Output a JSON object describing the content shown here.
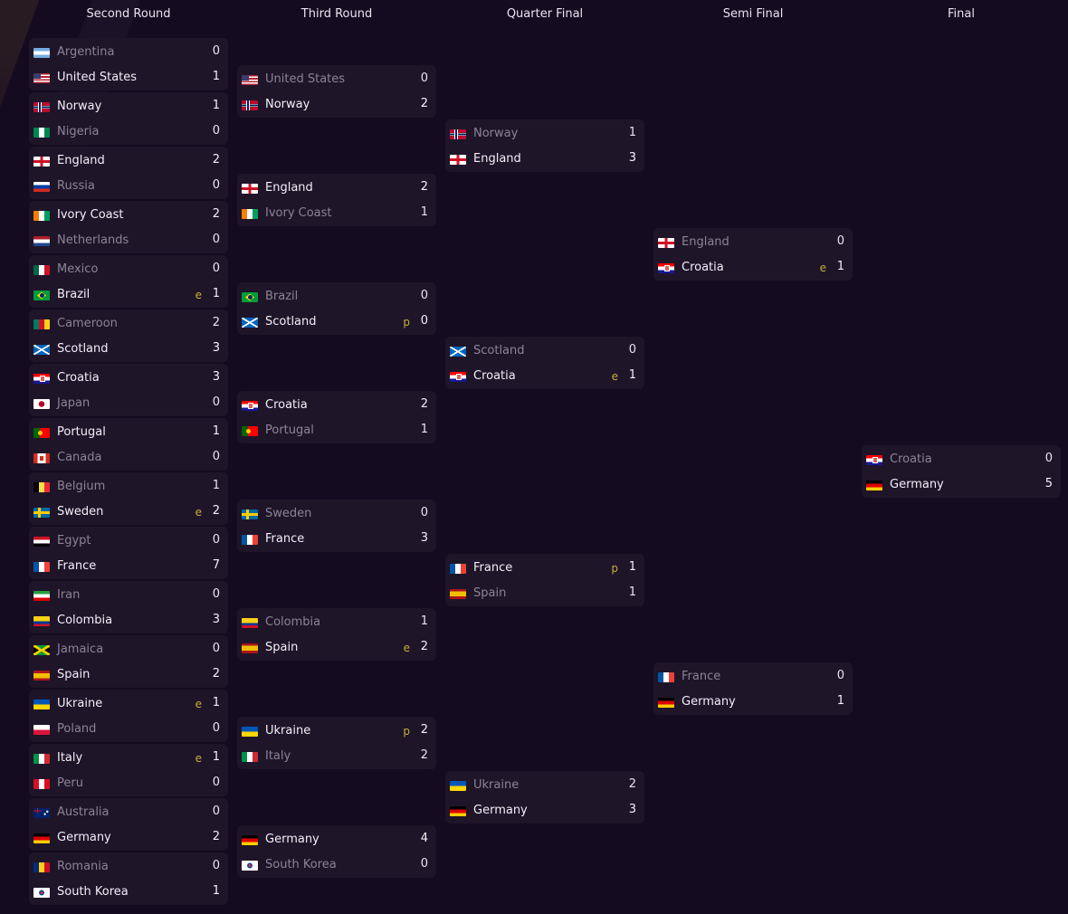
{
  "rounds": [
    {
      "title": "Second Round",
      "matches": [
        [
          {
            "name": "Argentina",
            "flag": "ar",
            "score": "0"
          },
          {
            "name": "United States",
            "flag": "us",
            "score": "1",
            "winner": true
          }
        ],
        [
          {
            "name": "Norway",
            "flag": "no",
            "score": "1",
            "winner": true
          },
          {
            "name": "Nigeria",
            "flag": "ng",
            "score": "0"
          }
        ],
        [
          {
            "name": "England",
            "flag": "en",
            "score": "2",
            "winner": true
          },
          {
            "name": "Russia",
            "flag": "ru",
            "score": "0"
          }
        ],
        [
          {
            "name": "Ivory Coast",
            "flag": "ci",
            "score": "2",
            "winner": true
          },
          {
            "name": "Netherlands",
            "flag": "nl",
            "score": "0"
          }
        ],
        [
          {
            "name": "Mexico",
            "flag": "mx",
            "score": "0"
          },
          {
            "name": "Brazil",
            "flag": "br",
            "score": "1",
            "winner": true,
            "marker": "e"
          }
        ],
        [
          {
            "name": "Cameroon",
            "flag": "cm",
            "score": "2"
          },
          {
            "name": "Scotland",
            "flag": "sc",
            "score": "3",
            "winner": true
          }
        ],
        [
          {
            "name": "Croatia",
            "flag": "hr",
            "score": "3",
            "winner": true
          },
          {
            "name": "Japan",
            "flag": "jp",
            "score": "0"
          }
        ],
        [
          {
            "name": "Portugal",
            "flag": "pt",
            "score": "1",
            "winner": true
          },
          {
            "name": "Canada",
            "flag": "ca",
            "score": "0"
          }
        ],
        [
          {
            "name": "Belgium",
            "flag": "be",
            "score": "1"
          },
          {
            "name": "Sweden",
            "flag": "se",
            "score": "2",
            "winner": true,
            "marker": "e"
          }
        ],
        [
          {
            "name": "Egypt",
            "flag": "eg",
            "score": "0"
          },
          {
            "name": "France",
            "flag": "fr",
            "score": "7",
            "winner": true
          }
        ],
        [
          {
            "name": "Iran",
            "flag": "ir",
            "score": "0"
          },
          {
            "name": "Colombia",
            "flag": "co",
            "score": "3",
            "winner": true
          }
        ],
        [
          {
            "name": "Jamaica",
            "flag": "jm",
            "score": "0"
          },
          {
            "name": "Spain",
            "flag": "es",
            "score": "2",
            "winner": true
          }
        ],
        [
          {
            "name": "Ukraine",
            "flag": "ua",
            "score": "1",
            "winner": true,
            "marker": "e"
          },
          {
            "name": "Poland",
            "flag": "pl",
            "score": "0"
          }
        ],
        [
          {
            "name": "Italy",
            "flag": "it",
            "score": "1",
            "winner": true,
            "marker": "e"
          },
          {
            "name": "Peru",
            "flag": "pe",
            "score": "0"
          }
        ],
        [
          {
            "name": "Australia",
            "flag": "au",
            "score": "0"
          },
          {
            "name": "Germany",
            "flag": "de",
            "score": "2",
            "winner": true
          }
        ],
        [
          {
            "name": "Romania",
            "flag": "ro",
            "score": "0"
          },
          {
            "name": "South Korea",
            "flag": "kr",
            "score": "1",
            "winner": true
          }
        ]
      ]
    },
    {
      "title": "Third Round",
      "matches": [
        [
          {
            "name": "United States",
            "flag": "us",
            "score": "0"
          },
          {
            "name": "Norway",
            "flag": "no",
            "score": "2",
            "winner": true
          }
        ],
        [
          {
            "name": "England",
            "flag": "en",
            "score": "2",
            "winner": true
          },
          {
            "name": "Ivory Coast",
            "flag": "ci",
            "score": "1"
          }
        ],
        [
          {
            "name": "Brazil",
            "flag": "br",
            "score": "0"
          },
          {
            "name": "Scotland",
            "flag": "sc",
            "score": "0",
            "winner": true,
            "marker": "p"
          }
        ],
        [
          {
            "name": "Croatia",
            "flag": "hr",
            "score": "2",
            "winner": true
          },
          {
            "name": "Portugal",
            "flag": "pt",
            "score": "1"
          }
        ],
        [
          {
            "name": "Sweden",
            "flag": "se",
            "score": "0"
          },
          {
            "name": "France",
            "flag": "fr",
            "score": "3",
            "winner": true
          }
        ],
        [
          {
            "name": "Colombia",
            "flag": "co",
            "score": "1"
          },
          {
            "name": "Spain",
            "flag": "es",
            "score": "2",
            "winner": true,
            "marker": "e"
          }
        ],
        [
          {
            "name": "Ukraine",
            "flag": "ua",
            "score": "2",
            "winner": true,
            "marker": "p"
          },
          {
            "name": "Italy",
            "flag": "it",
            "score": "2"
          }
        ],
        [
          {
            "name": "Germany",
            "flag": "de",
            "score": "4",
            "winner": true
          },
          {
            "name": "South Korea",
            "flag": "kr",
            "score": "0"
          }
        ]
      ]
    },
    {
      "title": "Quarter Final",
      "matches": [
        [
          {
            "name": "Norway",
            "flag": "no",
            "score": "1"
          },
          {
            "name": "England",
            "flag": "en",
            "score": "3",
            "winner": true
          }
        ],
        [
          {
            "name": "Scotland",
            "flag": "sc",
            "score": "0"
          },
          {
            "name": "Croatia",
            "flag": "hr",
            "score": "1",
            "winner": true,
            "marker": "e"
          }
        ],
        [
          {
            "name": "France",
            "flag": "fr",
            "score": "1",
            "winner": true,
            "marker": "p"
          },
          {
            "name": "Spain",
            "flag": "es",
            "score": "1"
          }
        ],
        [
          {
            "name": "Ukraine",
            "flag": "ua",
            "score": "2"
          },
          {
            "name": "Germany",
            "flag": "de",
            "score": "3",
            "winner": true
          }
        ]
      ]
    },
    {
      "title": "Semi Final",
      "matches": [
        [
          {
            "name": "England",
            "flag": "en",
            "score": "0"
          },
          {
            "name": "Croatia",
            "flag": "hr",
            "score": "1",
            "winner": true,
            "marker": "e"
          }
        ],
        [
          {
            "name": "France",
            "flag": "fr",
            "score": "0"
          },
          {
            "name": "Germany",
            "flag": "de",
            "score": "1",
            "winner": true
          }
        ]
      ]
    },
    {
      "title": "Final",
      "matches": [
        [
          {
            "name": "Croatia",
            "flag": "hr",
            "score": "0"
          },
          {
            "name": "Germany",
            "flag": "de",
            "score": "5",
            "winner": true
          }
        ]
      ]
    }
  ],
  "colors": {
    "background": "#150b21",
    "box": "#1f1529",
    "marker": "#c4b033",
    "loser_text": "#8b8496"
  }
}
